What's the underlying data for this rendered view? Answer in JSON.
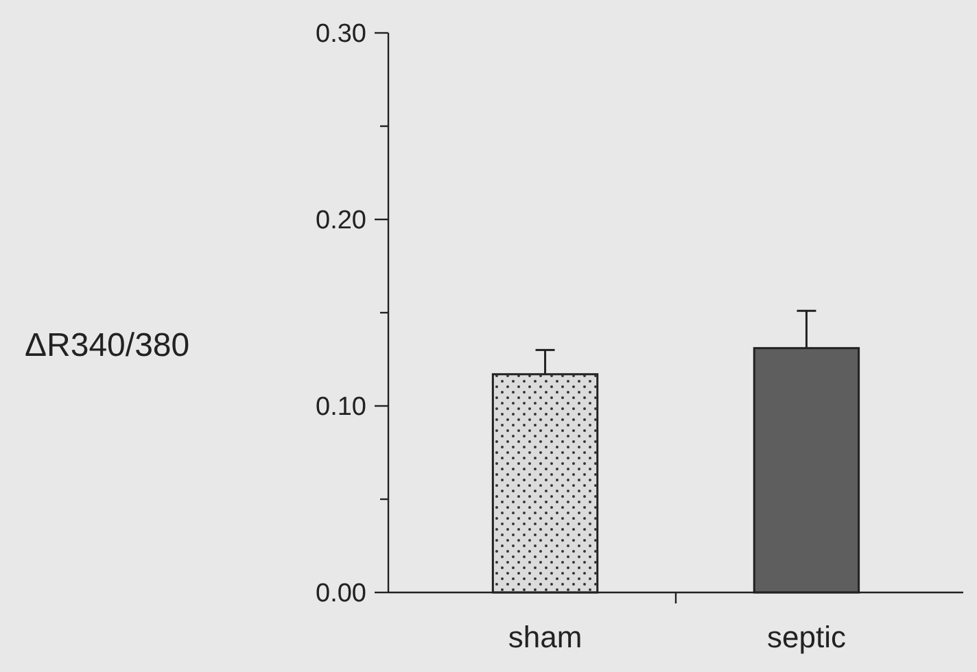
{
  "chart_data": {
    "type": "bar",
    "ylabel": "ΔR340/380",
    "categories": [
      "sham",
      "septic"
    ],
    "values": [
      0.117,
      0.131
    ],
    "errors": [
      [
        0.117,
        0.13
      ],
      [
        0.131,
        0.151
      ]
    ],
    "colors": [
      "#dcdcdc",
      "#5e5e5e"
    ],
    "ylim": [
      0,
      0.3
    ],
    "yticks": [
      {
        "value": 0,
        "label": "0.00"
      },
      {
        "value": 0.05,
        "label": null
      },
      {
        "value": 0.1,
        "label": "0.10"
      },
      {
        "value": 0.15,
        "label": null
      },
      {
        "value": 0.2,
        "label": "0.20"
      },
      {
        "value": 0.25,
        "label": null
      },
      {
        "value": 0.3,
        "label": "0.30"
      }
    ],
    "grid": false
  }
}
